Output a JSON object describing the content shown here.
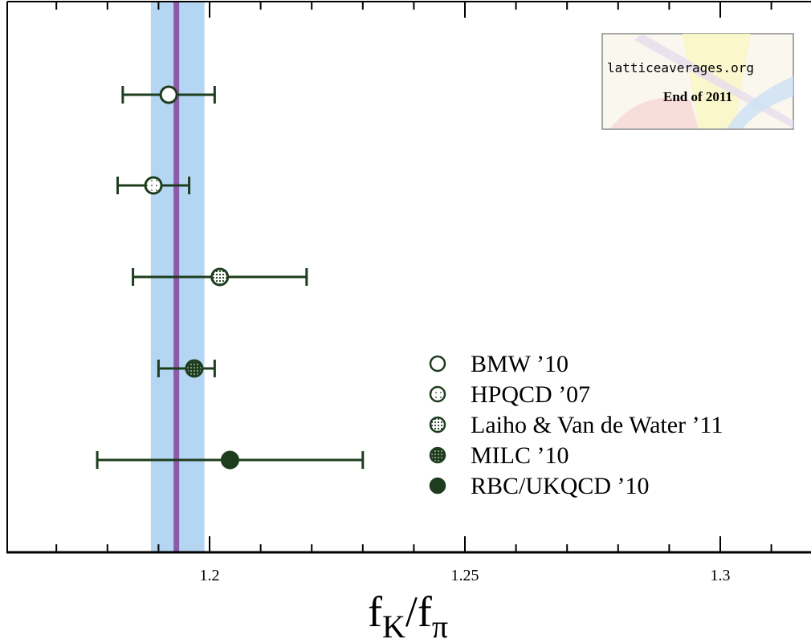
{
  "chart_data": {
    "type": "scatter",
    "title": "",
    "xlabel": {
      "main": "f",
      "sub1": "K",
      "slash": "/f",
      "sub2": "π"
    },
    "ylabel": "",
    "xlim": [
      1.16,
      1.32
    ],
    "x_ticks": [
      {
        "value": 1.2,
        "label": "1.2"
      },
      {
        "value": 1.25,
        "label": "1.25"
      },
      {
        "value": 1.3,
        "label": "1.3"
      }
    ],
    "x_minor_ticks": [
      1.17,
      1.18,
      1.19,
      1.21,
      1.22,
      1.23,
      1.24,
      1.26,
      1.27,
      1.28,
      1.29,
      1.31
    ],
    "average": {
      "value": 1.1935,
      "band": [
        1.1885,
        1.199
      ]
    },
    "series": [
      {
        "name": "BMW ’10",
        "value": 1.192,
        "err_low": 1.183,
        "err_high": 1.201,
        "marker": "open"
      },
      {
        "name": "HPQCD ’07",
        "value": 1.189,
        "err_low": 1.182,
        "err_high": 1.196,
        "marker": "sparse-dot"
      },
      {
        "name": "Laiho & Van de Water ’11",
        "value": 1.202,
        "err_low": 1.185,
        "err_high": 1.219,
        "marker": "dense-dot"
      },
      {
        "name": "MILC ’10",
        "value": 1.197,
        "err_low": 1.19,
        "err_high": 1.201,
        "marker": "dark-dot"
      },
      {
        "name": "RBC/UKQCD ’10",
        "value": 1.204,
        "err_low": 1.178,
        "err_high": 1.23,
        "marker": "filled"
      }
    ],
    "grid": false,
    "legend_position": "bottom-right"
  },
  "logo": {
    "url": "latticeaverages.org",
    "subtitle": "End of 2011"
  },
  "colors": {
    "marker": "#1e3d1e",
    "band": "#b5d6f2",
    "average_line": "#8c5aa8",
    "axis": "#000000"
  }
}
